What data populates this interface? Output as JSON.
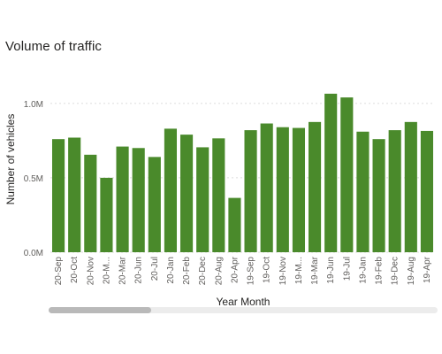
{
  "visual": {
    "title": "Volume of traffic",
    "bar_color": "#4a8a2b",
    "gridline_color": "#dcdcdc",
    "has_horizontal_scrollbar": true
  },
  "chart_data": {
    "type": "bar",
    "title": "Volume of traffic",
    "xlabel": "Year Month",
    "ylabel": "Number of vehicles",
    "ylim": [
      0,
      1100000
    ],
    "yticks": [
      {
        "value": 0,
        "label": "0.0M"
      },
      {
        "value": 500000,
        "label": "0.5M"
      },
      {
        "value": 1000000,
        "label": "1.0M"
      }
    ],
    "grid": true,
    "categories": [
      "20-Sep",
      "20-Oct",
      "20-Nov",
      "20-M...",
      "20-Mar",
      "20-Jun",
      "20-Jul",
      "20-Jan",
      "20-Feb",
      "20-Dec",
      "20-Aug",
      "20-Apr",
      "19-Sep",
      "19-Oct",
      "19-Nov",
      "19-M...",
      "19-Mar",
      "19-Jun",
      "19-Jul",
      "19-Jan",
      "19-Feb",
      "19-Dec",
      "19-Aug",
      "19-Apr"
    ],
    "values": [
      760000,
      770000,
      655000,
      500000,
      710000,
      700000,
      640000,
      830000,
      790000,
      705000,
      765000,
      365000,
      820000,
      865000,
      840000,
      835000,
      875000,
      1065000,
      1040000,
      810000,
      760000,
      820000,
      875000,
      815000
    ]
  }
}
